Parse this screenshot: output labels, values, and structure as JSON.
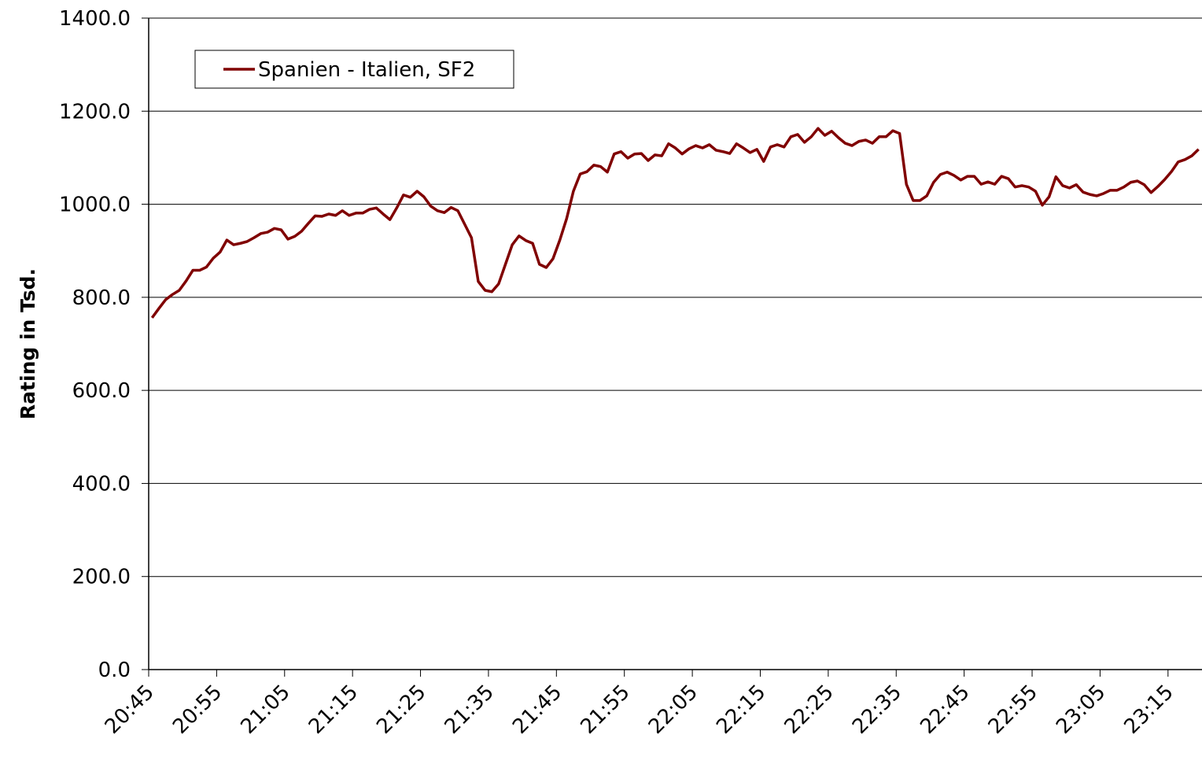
{
  "chart_data": {
    "type": "line",
    "y_label": "Rating in Tsd.",
    "categories": [
      "20:45",
      null,
      null,
      null,
      null,
      null,
      null,
      null,
      null,
      null,
      "20:55",
      null,
      null,
      null,
      null,
      null,
      null,
      null,
      null,
      null,
      "21:05",
      null,
      null,
      null,
      null,
      null,
      null,
      null,
      null,
      null,
      "21:15",
      null,
      null,
      null,
      null,
      null,
      null,
      null,
      null,
      null,
      "21:25",
      null,
      null,
      null,
      null,
      null,
      null,
      null,
      null,
      null,
      "21:35",
      null,
      null,
      null,
      null,
      null,
      null,
      null,
      null,
      null,
      "21:45",
      null,
      null,
      null,
      null,
      null,
      null,
      null,
      null,
      null,
      "21:55",
      null,
      null,
      null,
      null,
      null,
      null,
      null,
      null,
      null,
      "22:05",
      null,
      null,
      null,
      null,
      null,
      null,
      null,
      null,
      null,
      "22:15",
      null,
      null,
      null,
      null,
      null,
      null,
      null,
      null,
      null,
      "22:25",
      null,
      null,
      null,
      null,
      null,
      null,
      null,
      null,
      null,
      "22:35",
      null,
      null,
      null,
      null,
      null,
      null,
      null,
      null,
      null,
      "22:45",
      null,
      null,
      null,
      null,
      null,
      null,
      null,
      null,
      null,
      "22:55",
      null,
      null,
      null,
      null,
      null,
      null,
      null,
      null,
      null,
      "23:05",
      null,
      null,
      null,
      null,
      null,
      null,
      null,
      null,
      null,
      "23:15",
      null,
      null,
      null,
      null
    ],
    "series": [
      {
        "name": "Spanien - Italien, SF2",
        "color": "#800000",
        "values": [
          756,
          776,
          795,
          806,
          815,
          835,
          858,
          858,
          865,
          884,
          897,
          923,
          913,
          916,
          920,
          928,
          937,
          940,
          948,
          945,
          925,
          931,
          942,
          959,
          975,
          974,
          979,
          976,
          986,
          976,
          981,
          981,
          989,
          992,
          979,
          967,
          992,
          1020,
          1015,
          1028,
          1016,
          996,
          986,
          982,
          993,
          986,
          957,
          928,
          834,
          815,
          812,
          829,
          871,
          913,
          932,
          922,
          916,
          871,
          864,
          883,
          923,
          969,
          1028,
          1065,
          1070,
          1084,
          1081,
          1069,
          1108,
          1113,
          1099,
          1108,
          1109,
          1094,
          1106,
          1104,
          1130,
          1121,
          1108,
          1119,
          1126,
          1121,
          1128,
          1116,
          1113,
          1109,
          1130,
          1121,
          1111,
          1118,
          1092,
          1123,
          1128,
          1123,
          1145,
          1150,
          1133,
          1145,
          1163,
          1148,
          1157,
          1143,
          1131,
          1126,
          1135,
          1138,
          1131,
          1145,
          1145,
          1158,
          1152,
          1043,
          1008,
          1008,
          1018,
          1047,
          1064,
          1069,
          1062,
          1052,
          1060,
          1060,
          1043,
          1048,
          1043,
          1060,
          1055,
          1037,
          1040,
          1037,
          1028,
          998,
          1016,
          1059,
          1040,
          1035,
          1042,
          1026,
          1021,
          1018,
          1023,
          1030,
          1030,
          1037,
          1047,
          1050,
          1042,
          1025,
          1038,
          1053,
          1070,
          1091,
          1096,
          1104,
          1118
        ]
      }
    ],
    "ylim": [
      0,
      1400
    ],
    "yticks": [
      {
        "value": 0,
        "label": "0.0"
      },
      {
        "value": 200,
        "label": "200.0"
      },
      {
        "value": 400,
        "label": "400.0"
      },
      {
        "value": 600,
        "label": "600.0"
      },
      {
        "value": 800,
        "label": "800.0"
      },
      {
        "value": 1000,
        "label": "1000.0"
      },
      {
        "value": 1200,
        "label": "1200.0"
      },
      {
        "value": 1400,
        "label": "1400.0"
      }
    ],
    "grid": true,
    "legend": "top-left"
  }
}
